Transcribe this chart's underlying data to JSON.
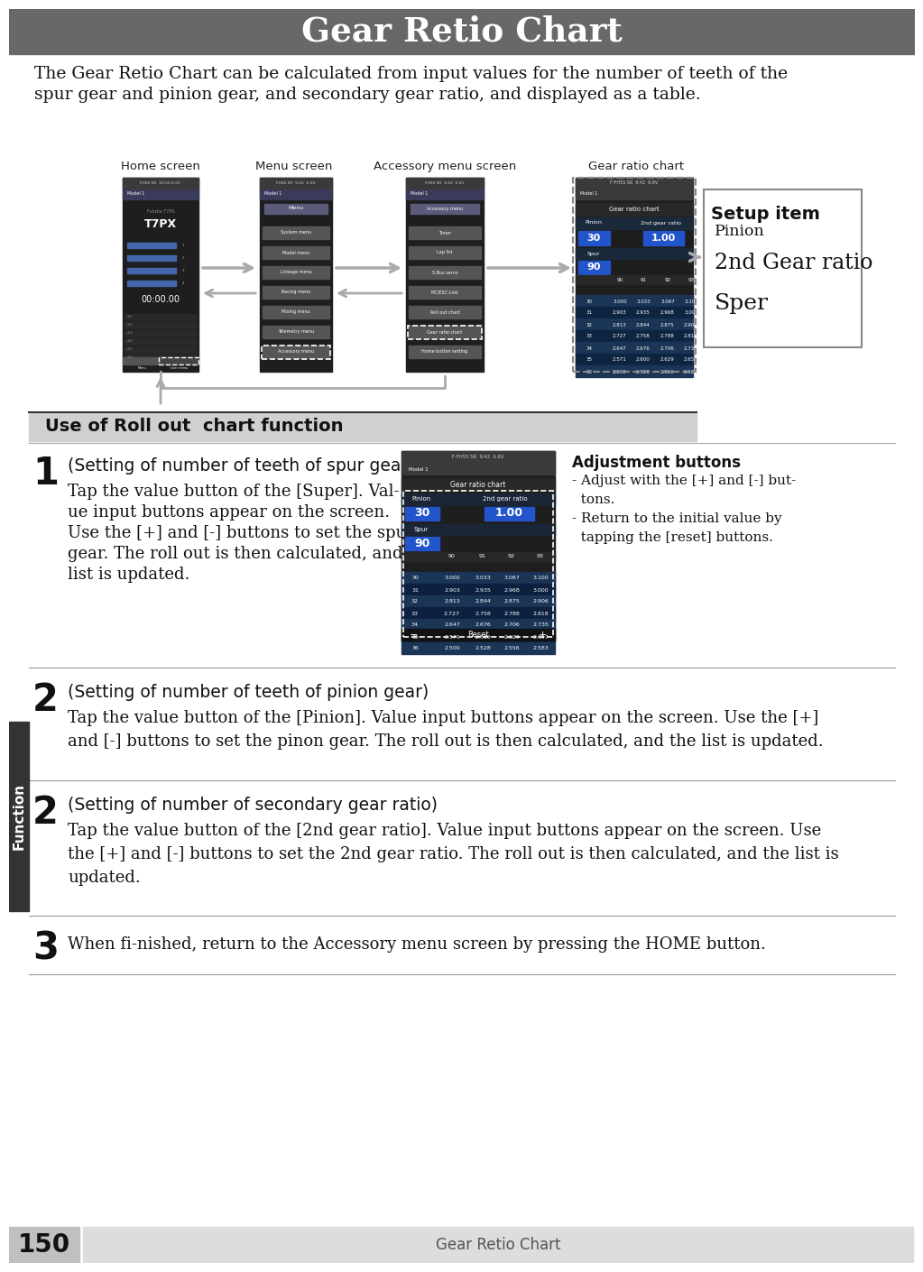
{
  "title": "Gear Retio Chart",
  "title_bg": "#686868",
  "title_color": "#ffffff",
  "page_bg": "#ffffff",
  "intro_line1": "The Gear Retio Chart can be calculated from input values for the number of teeth of the",
  "intro_line2": "spur gear and pinion gear, and secondary gear ratio, and displayed as a table.",
  "screen_labels": [
    "Home screen",
    "Menu screen",
    "Accessory menu screen",
    "Gear ratio chart"
  ],
  "setup_box_title": "Setup item",
  "setup_box_items": [
    "Pinion",
    "2nd Gear ratio",
    "Sper"
  ],
  "section_bar_text": "Use of Roll out  chart function",
  "section_bar_bg": "#d0d0d0",
  "step1_num": "1",
  "step1_head": "(Setting of number of teeth of spur gear)",
  "step1_body": [
    "Tap the value button of the [Super]. Val-",
    "ue input buttons appear on the screen.",
    "Use the [+] and [-] buttons to set the spur",
    "gear. The roll out is then calculated, and the",
    "list is updated."
  ],
  "adj_title": "Adjustment buttons",
  "adj_lines": [
    "- Adjust with the [+] and [-] but-",
    "  tons.",
    "- Return to the initial value by",
    "  tapping the [reset] buttons."
  ],
  "step2a_num": "2",
  "step2a_head": "(Setting of number of teeth of pinion gear)",
  "step2a_body": [
    "Tap the value button of the [Pinion]. Value input buttons appear on the screen. Use the [+]",
    "and [-] buttons to set the pinon gear. The roll out is then calculated, and the list is updated."
  ],
  "step2b_num": "2",
  "step2b_head": "(Setting of number of secondary gear ratio)",
  "step2b_body": [
    "Tap the value button of the [2nd gear ratio]. Value input buttons appear on the screen. Use",
    "the [+] and [-] buttons to set the 2nd gear ratio. The roll out is then calculated, and the list is",
    "updated."
  ],
  "step3_num": "3",
  "step3_body": "When fi­nished, return to the Accessory menu screen by pressing the HOME button.",
  "footer_text": "Gear Retio Chart",
  "footer_page": "150",
  "left_tab_color": "#333333",
  "left_tab_text": "Function",
  "table_rows": [
    [
      "30",
      "3.000",
      "3.033",
      "3.067",
      "3.100"
    ],
    [
      "31",
      "2.903",
      "2.935",
      "2.968",
      "3.000"
    ],
    [
      "32",
      "2.813",
      "2.844",
      "2.875",
      "2.906"
    ],
    [
      "33",
      "2.727",
      "2.758",
      "2.788",
      "2.818"
    ],
    [
      "34",
      "2.647",
      "2.676",
      "2.706",
      "2.735"
    ],
    [
      "35",
      "2.571",
      "2.600",
      "2.629",
      "2.657"
    ],
    [
      "36",
      "2.500",
      "2.528",
      "2.556",
      "2.583"
    ]
  ],
  "table_cols": [
    "90",
    "91",
    "92",
    "93"
  ],
  "menu_items": [
    "System menu",
    "Model menu",
    "Linkage menu",
    "Racing menu",
    "Mixing menu",
    "Telemetry menu",
    "Accessory menu"
  ],
  "acc_items": [
    "Timer",
    "Lap list",
    "S.Bus servo",
    "MC/ESC-Link",
    "Roll out chart",
    "Gear ratio chart",
    "Home button setting"
  ]
}
